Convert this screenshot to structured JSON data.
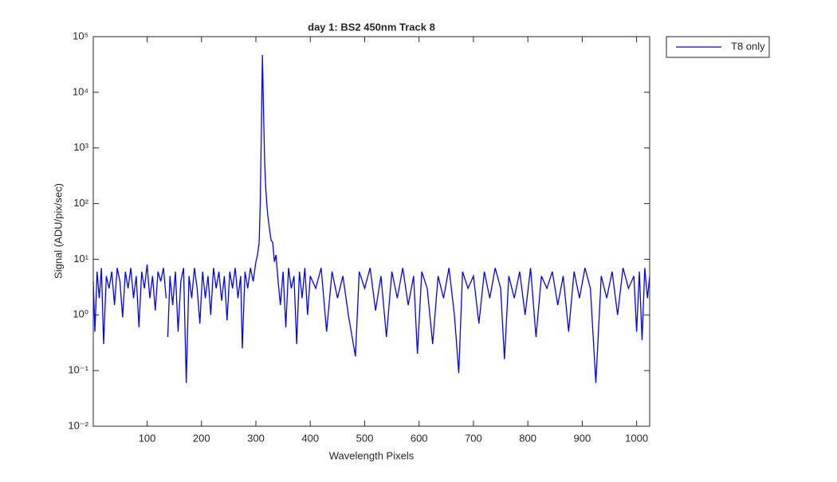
{
  "chart_data": {
    "type": "line",
    "title": "day 1: BS2  450nm  Track 8",
    "xlabel": "Wavelength Pixels",
    "ylabel": "Signal (ADU/pix/sec)",
    "x": [
      1,
      4,
      8,
      12,
      16,
      20,
      25,
      30,
      35,
      40,
      45,
      50,
      55,
      60,
      65,
      70,
      75,
      80,
      85,
      90,
      95,
      100,
      105,
      110,
      115,
      120,
      125,
      130,
      135,
      136,
      138,
      142,
      147,
      152,
      157,
      162,
      167,
      172,
      177,
      182,
      187,
      192,
      197,
      202,
      207,
      212,
      217,
      222,
      227,
      232,
      237,
      242,
      247,
      252,
      257,
      262,
      267,
      272,
      275,
      280,
      285,
      290,
      295,
      300,
      303,
      306,
      308,
      310,
      312,
      314,
      316,
      318,
      320,
      322,
      325,
      328,
      331,
      334,
      337,
      340,
      345,
      350,
      355,
      360,
      365,
      370,
      375,
      380,
      385,
      390,
      395,
      400,
      410,
      420,
      430,
      440,
      450,
      460,
      470,
      483,
      490,
      500,
      510,
      520,
      530,
      540,
      550,
      560,
      570,
      580,
      590,
      597,
      605,
      615,
      625,
      635,
      645,
      655,
      665,
      673,
      680,
      690,
      700,
      710,
      720,
      730,
      740,
      750,
      757,
      765,
      775,
      785,
      795,
      805,
      815,
      825,
      835,
      845,
      855,
      865,
      875,
      885,
      895,
      905,
      915,
      925,
      935,
      945,
      955,
      965,
      975,
      985,
      995,
      1000,
      1005,
      1010,
      1015,
      1020,
      1024
    ],
    "series": [
      {
        "name": "T8 only",
        "color": "#0000ff",
        "values": [
          4,
          0.5,
          6,
          2,
          7,
          0.3,
          5,
          3,
          6,
          1.5,
          7,
          4,
          0.9,
          6,
          3,
          7,
          2,
          5,
          0.6,
          6,
          3,
          8,
          2,
          5,
          1.2,
          6,
          4,
          7,
          2,
          null,
          0.4,
          5,
          1.5,
          6,
          0.5,
          4,
          7,
          0.06,
          5,
          2,
          7,
          3,
          0.7,
          6,
          2,
          5,
          1,
          7,
          3,
          6,
          1.8,
          5,
          0.8,
          6,
          3,
          7,
          2,
          5,
          0.25,
          6,
          3,
          7,
          4,
          9,
          12,
          20,
          100,
          2000,
          47000,
          5000,
          600,
          200,
          100,
          60,
          35,
          22,
          20,
          9,
          12,
          5,
          1.5,
          6,
          0.6,
          7,
          3,
          5,
          0.3,
          6,
          2,
          7,
          1,
          5,
          3,
          7,
          0.5,
          6,
          2,
          5,
          1,
          0.18,
          6,
          3,
          7,
          1.2,
          5,
          0.4,
          6,
          2,
          7,
          1.5,
          5,
          0.2,
          6,
          3,
          0.3,
          5,
          2,
          7,
          1,
          0.09,
          6,
          3,
          5,
          0.7,
          6,
          2,
          7,
          3,
          0.16,
          5,
          2,
          6,
          1,
          7,
          0.4,
          5,
          3,
          6,
          1.5,
          5,
          0.5,
          6,
          2,
          7,
          3,
          0.06,
          5,
          2,
          6,
          1,
          7,
          3,
          5,
          0.5,
          6,
          0.35,
          7,
          2,
          5
        ]
      }
    ],
    "xlim": [
      1,
      1024
    ],
    "xticks": [
      100,
      200,
      300,
      400,
      500,
      600,
      700,
      800,
      900,
      1000
    ],
    "ylim": [
      0.01,
      100000
    ],
    "ylog": true,
    "yticks": [
      {
        "value": 0.01,
        "label": "10⁻²"
      },
      {
        "value": 0.1,
        "label": "10⁻¹"
      },
      {
        "value": 1,
        "label": "10⁰"
      },
      {
        "value": 10,
        "label": "10¹"
      },
      {
        "value": 100,
        "label": "10²"
      },
      {
        "value": 1000,
        "label": "10³"
      },
      {
        "value": 10000,
        "label": "10⁴"
      },
      {
        "value": 100000,
        "label": "10⁵"
      }
    ],
    "grid": false,
    "legend": "northeastoutside"
  }
}
